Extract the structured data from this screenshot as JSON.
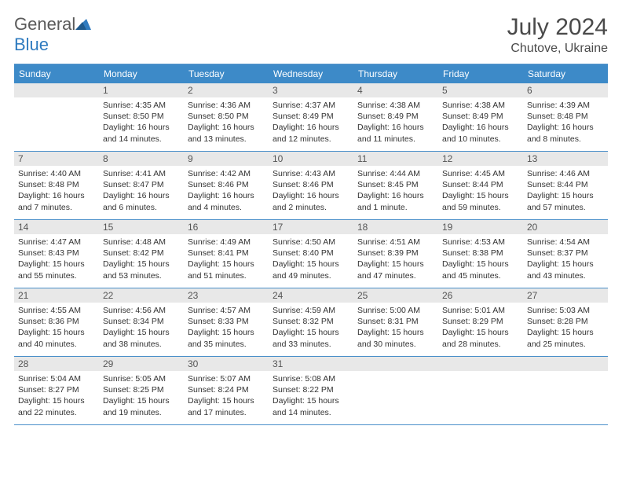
{
  "brand": {
    "name_gray": "General",
    "name_blue": "Blue"
  },
  "title": "July 2024",
  "location": "Chutove, Ukraine",
  "colors": {
    "header_bg": "#3d8ac8",
    "header_text": "#ffffff",
    "rule": "#4a8fc9",
    "daynum_bg": "#e8e8e8",
    "daynum_text": "#555555",
    "body_text": "#333333",
    "title_text": "#4a4a4a"
  },
  "daysOfWeek": [
    "Sunday",
    "Monday",
    "Tuesday",
    "Wednesday",
    "Thursday",
    "Friday",
    "Saturday"
  ],
  "weeks": [
    [
      {
        "n": "",
        "sunrise": "",
        "sunset": "",
        "daylight": ""
      },
      {
        "n": "1",
        "sunrise": "Sunrise: 4:35 AM",
        "sunset": "Sunset: 8:50 PM",
        "daylight": "Daylight: 16 hours and 14 minutes."
      },
      {
        "n": "2",
        "sunrise": "Sunrise: 4:36 AM",
        "sunset": "Sunset: 8:50 PM",
        "daylight": "Daylight: 16 hours and 13 minutes."
      },
      {
        "n": "3",
        "sunrise": "Sunrise: 4:37 AM",
        "sunset": "Sunset: 8:49 PM",
        "daylight": "Daylight: 16 hours and 12 minutes."
      },
      {
        "n": "4",
        "sunrise": "Sunrise: 4:38 AM",
        "sunset": "Sunset: 8:49 PM",
        "daylight": "Daylight: 16 hours and 11 minutes."
      },
      {
        "n": "5",
        "sunrise": "Sunrise: 4:38 AM",
        "sunset": "Sunset: 8:49 PM",
        "daylight": "Daylight: 16 hours and 10 minutes."
      },
      {
        "n": "6",
        "sunrise": "Sunrise: 4:39 AM",
        "sunset": "Sunset: 8:48 PM",
        "daylight": "Daylight: 16 hours and 8 minutes."
      }
    ],
    [
      {
        "n": "7",
        "sunrise": "Sunrise: 4:40 AM",
        "sunset": "Sunset: 8:48 PM",
        "daylight": "Daylight: 16 hours and 7 minutes."
      },
      {
        "n": "8",
        "sunrise": "Sunrise: 4:41 AM",
        "sunset": "Sunset: 8:47 PM",
        "daylight": "Daylight: 16 hours and 6 minutes."
      },
      {
        "n": "9",
        "sunrise": "Sunrise: 4:42 AM",
        "sunset": "Sunset: 8:46 PM",
        "daylight": "Daylight: 16 hours and 4 minutes."
      },
      {
        "n": "10",
        "sunrise": "Sunrise: 4:43 AM",
        "sunset": "Sunset: 8:46 PM",
        "daylight": "Daylight: 16 hours and 2 minutes."
      },
      {
        "n": "11",
        "sunrise": "Sunrise: 4:44 AM",
        "sunset": "Sunset: 8:45 PM",
        "daylight": "Daylight: 16 hours and 1 minute."
      },
      {
        "n": "12",
        "sunrise": "Sunrise: 4:45 AM",
        "sunset": "Sunset: 8:44 PM",
        "daylight": "Daylight: 15 hours and 59 minutes."
      },
      {
        "n": "13",
        "sunrise": "Sunrise: 4:46 AM",
        "sunset": "Sunset: 8:44 PM",
        "daylight": "Daylight: 15 hours and 57 minutes."
      }
    ],
    [
      {
        "n": "14",
        "sunrise": "Sunrise: 4:47 AM",
        "sunset": "Sunset: 8:43 PM",
        "daylight": "Daylight: 15 hours and 55 minutes."
      },
      {
        "n": "15",
        "sunrise": "Sunrise: 4:48 AM",
        "sunset": "Sunset: 8:42 PM",
        "daylight": "Daylight: 15 hours and 53 minutes."
      },
      {
        "n": "16",
        "sunrise": "Sunrise: 4:49 AM",
        "sunset": "Sunset: 8:41 PM",
        "daylight": "Daylight: 15 hours and 51 minutes."
      },
      {
        "n": "17",
        "sunrise": "Sunrise: 4:50 AM",
        "sunset": "Sunset: 8:40 PM",
        "daylight": "Daylight: 15 hours and 49 minutes."
      },
      {
        "n": "18",
        "sunrise": "Sunrise: 4:51 AM",
        "sunset": "Sunset: 8:39 PM",
        "daylight": "Daylight: 15 hours and 47 minutes."
      },
      {
        "n": "19",
        "sunrise": "Sunrise: 4:53 AM",
        "sunset": "Sunset: 8:38 PM",
        "daylight": "Daylight: 15 hours and 45 minutes."
      },
      {
        "n": "20",
        "sunrise": "Sunrise: 4:54 AM",
        "sunset": "Sunset: 8:37 PM",
        "daylight": "Daylight: 15 hours and 43 minutes."
      }
    ],
    [
      {
        "n": "21",
        "sunrise": "Sunrise: 4:55 AM",
        "sunset": "Sunset: 8:36 PM",
        "daylight": "Daylight: 15 hours and 40 minutes."
      },
      {
        "n": "22",
        "sunrise": "Sunrise: 4:56 AM",
        "sunset": "Sunset: 8:34 PM",
        "daylight": "Daylight: 15 hours and 38 minutes."
      },
      {
        "n": "23",
        "sunrise": "Sunrise: 4:57 AM",
        "sunset": "Sunset: 8:33 PM",
        "daylight": "Daylight: 15 hours and 35 minutes."
      },
      {
        "n": "24",
        "sunrise": "Sunrise: 4:59 AM",
        "sunset": "Sunset: 8:32 PM",
        "daylight": "Daylight: 15 hours and 33 minutes."
      },
      {
        "n": "25",
        "sunrise": "Sunrise: 5:00 AM",
        "sunset": "Sunset: 8:31 PM",
        "daylight": "Daylight: 15 hours and 30 minutes."
      },
      {
        "n": "26",
        "sunrise": "Sunrise: 5:01 AM",
        "sunset": "Sunset: 8:29 PM",
        "daylight": "Daylight: 15 hours and 28 minutes."
      },
      {
        "n": "27",
        "sunrise": "Sunrise: 5:03 AM",
        "sunset": "Sunset: 8:28 PM",
        "daylight": "Daylight: 15 hours and 25 minutes."
      }
    ],
    [
      {
        "n": "28",
        "sunrise": "Sunrise: 5:04 AM",
        "sunset": "Sunset: 8:27 PM",
        "daylight": "Daylight: 15 hours and 22 minutes."
      },
      {
        "n": "29",
        "sunrise": "Sunrise: 5:05 AM",
        "sunset": "Sunset: 8:25 PM",
        "daylight": "Daylight: 15 hours and 19 minutes."
      },
      {
        "n": "30",
        "sunrise": "Sunrise: 5:07 AM",
        "sunset": "Sunset: 8:24 PM",
        "daylight": "Daylight: 15 hours and 17 minutes."
      },
      {
        "n": "31",
        "sunrise": "Sunrise: 5:08 AM",
        "sunset": "Sunset: 8:22 PM",
        "daylight": "Daylight: 15 hours and 14 minutes."
      },
      {
        "n": "",
        "sunrise": "",
        "sunset": "",
        "daylight": ""
      },
      {
        "n": "",
        "sunrise": "",
        "sunset": "",
        "daylight": ""
      },
      {
        "n": "",
        "sunrise": "",
        "sunset": "",
        "daylight": ""
      }
    ]
  ]
}
